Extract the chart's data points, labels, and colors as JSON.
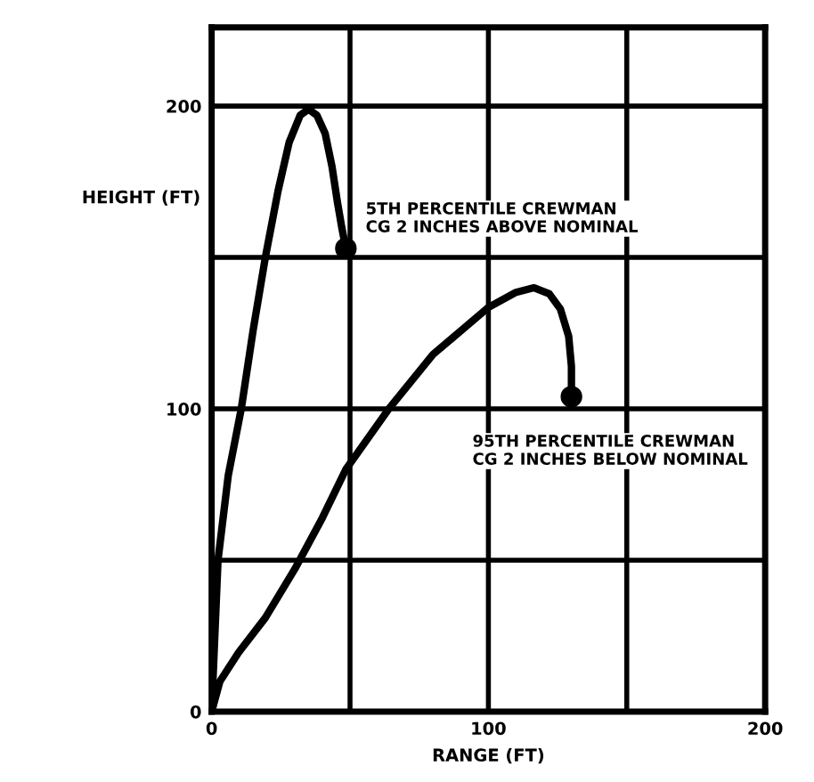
{
  "chart_data": {
    "type": "line",
    "xlabel": "RANGE (FT)",
    "ylabel": "HEIGHT (FT)",
    "xlim": [
      0,
      200
    ],
    "ylim": [
      0,
      226
    ],
    "xticks": [
      0,
      {
        "value": 50,
        "label": null
      },
      100,
      {
        "value": 150,
        "label": null
      },
      200
    ],
    "yticks": [
      0,
      {
        "value": 50,
        "label": null
      },
      100,
      {
        "value": 150,
        "label": null
      },
      200
    ],
    "grid": true,
    "marker": "none",
    "line_style": "solid",
    "series": [
      {
        "color": "#000000",
        "x": [
          0,
          2.3,
          6,
          10.7,
          15,
          19.4,
          24,
          28,
          32,
          35,
          38,
          41,
          43.5,
          45.5,
          47,
          48.5
        ],
        "values": [
          0,
          50,
          78,
          100,
          126,
          150,
          172,
          188,
          197,
          199,
          197,
          191,
          180,
          168,
          160,
          153
        ]
      },
      {
        "color": "#000000",
        "x": [
          0,
          3,
          9.7,
          19.4,
          30,
          40,
          48.5,
          64,
          80,
          100,
          110,
          116.5,
          122,
          126,
          129,
          130,
          130
        ],
        "values": [
          0,
          10,
          19.5,
          31,
          47,
          64,
          80,
          100,
          118,
          133.5,
          138.5,
          140,
          138,
          133,
          124,
          114,
          104
        ]
      },
      {
        "type": "scatter",
        "color": "#000000",
        "marker": "circle",
        "x": [
          48.5,
          130
        ],
        "values": [
          153,
          104
        ]
      }
    ],
    "annotations": [
      {
        "text": "5TH PERCENTILE CREWMAN\nCG 2 INCHES ABOVE NOMINAL",
        "x": 48.5,
        "y": 153
      },
      {
        "text": "95TH PERCENTILE CREWMAN\nCG 2 INCHES BELOW NOMINAL",
        "x": 130,
        "y": 104
      }
    ]
  }
}
